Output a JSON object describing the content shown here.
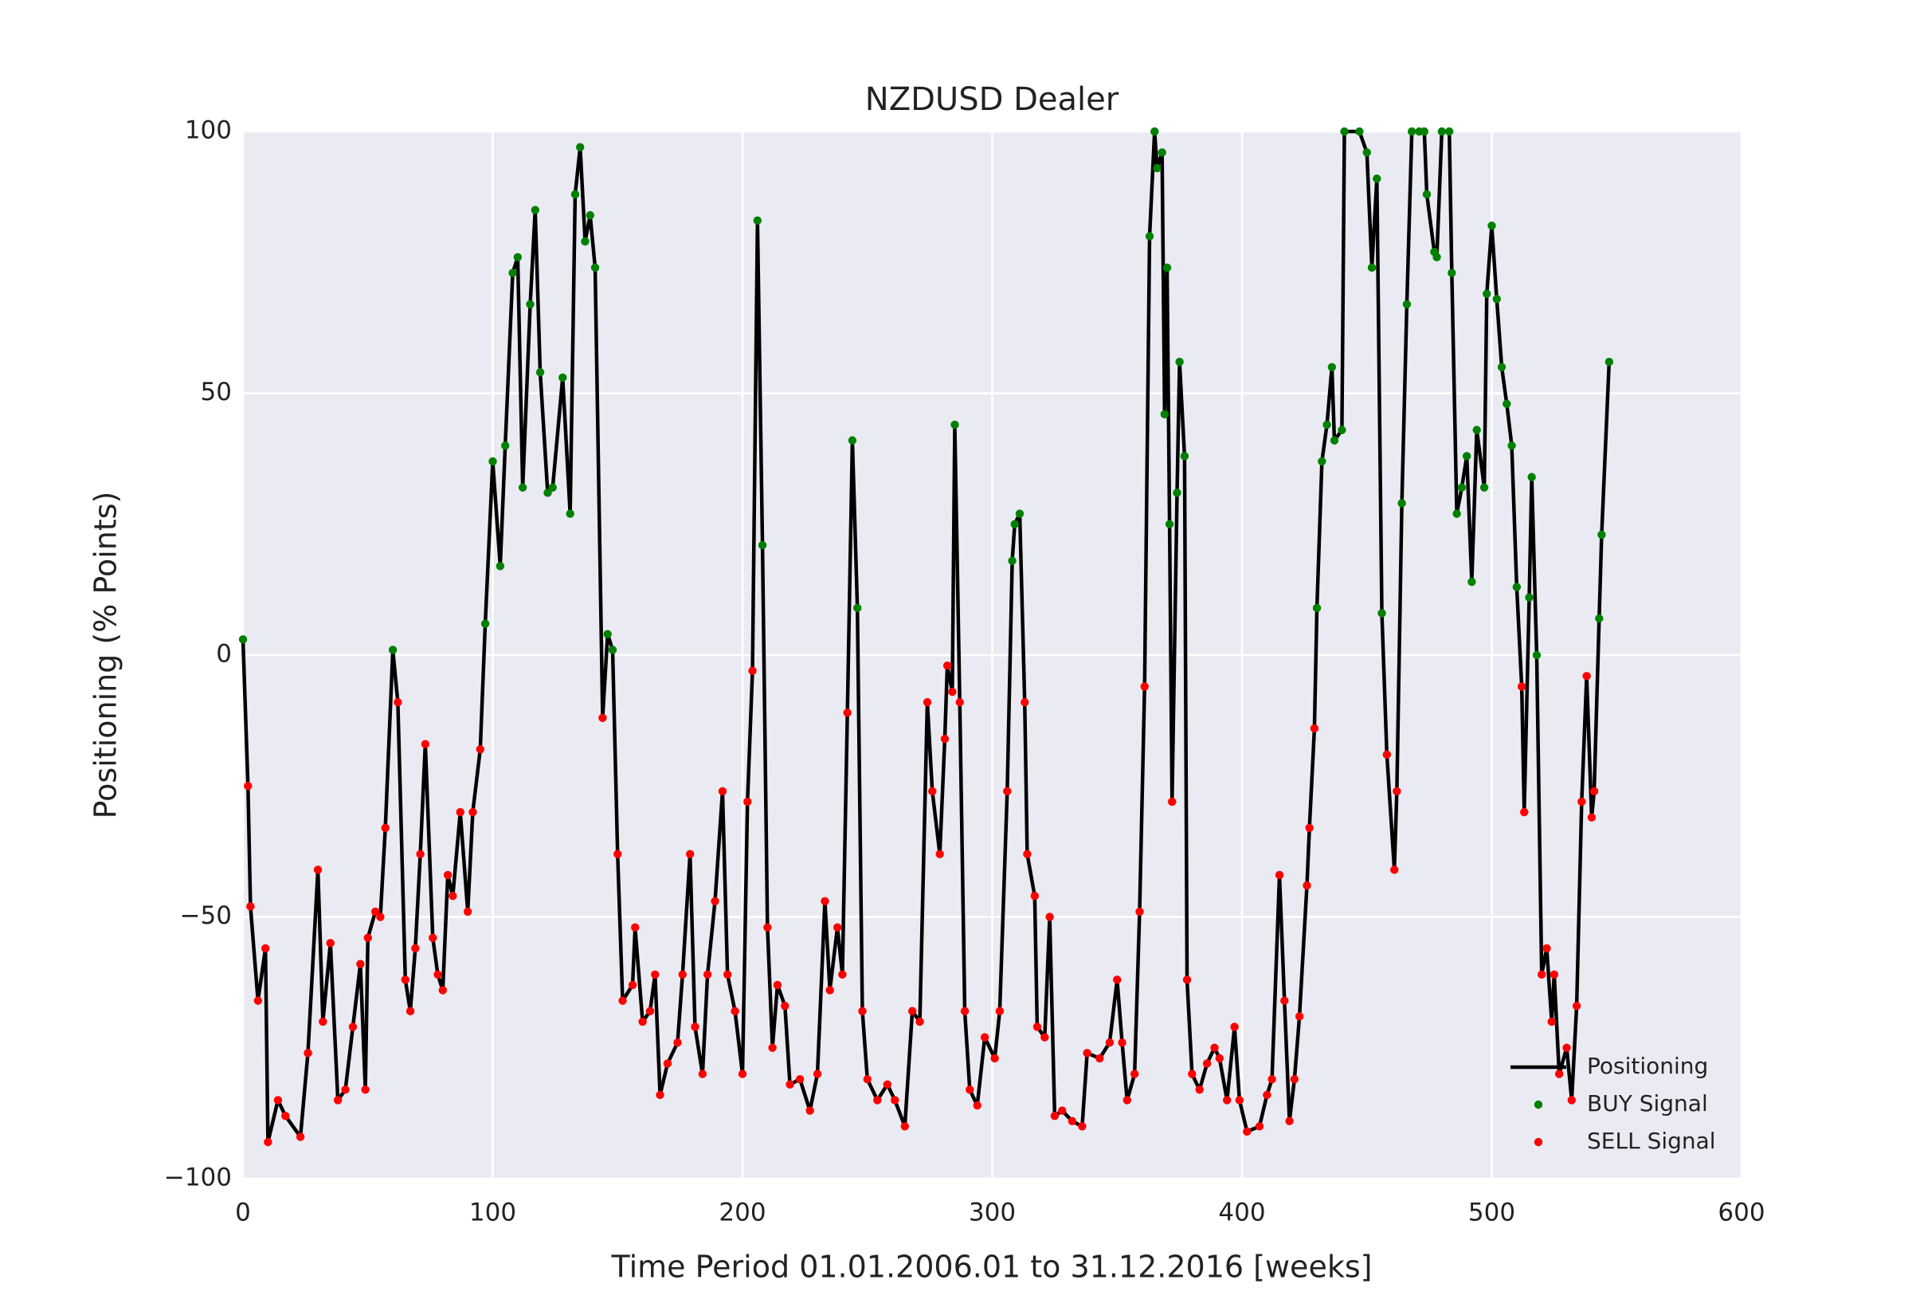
{
  "chart_data": {
    "type": "line",
    "title": "NZDUSD Dealer",
    "xlabel": "Time Period 01.01.2006.01 to 31.12.2016 [weeks]",
    "ylabel": "Positioning (% Points)",
    "xlim": [
      0,
      600
    ],
    "xticks": [
      0,
      100,
      200,
      300,
      400,
      500,
      600
    ],
    "ylim": [
      -100,
      100
    ],
    "yticks": [
      {
        "value": -100,
        "label": "−100"
      },
      {
        "value": -50,
        "label": "−50"
      },
      0,
      50,
      100
    ],
    "grid": true,
    "legend": "lower right",
    "x": [
      0,
      2,
      3,
      6,
      9,
      10,
      14,
      17,
      23,
      26,
      30,
      32,
      35,
      38,
      41,
      44,
      47,
      49,
      50,
      53,
      55,
      57,
      60,
      62,
      65,
      67,
      69,
      71,
      73,
      76,
      78,
      80,
      82,
      84,
      87,
      90,
      92,
      95,
      97,
      100,
      103,
      105,
      108,
      110,
      112,
      115,
      117,
      119,
      122,
      124,
      128,
      131,
      133,
      135,
      137,
      139,
      141,
      144,
      146,
      148,
      150,
      152,
      156,
      157,
      160,
      163,
      165,
      167,
      170,
      174,
      176,
      179,
      181,
      184,
      186,
      189,
      192,
      194,
      197,
      200,
      202,
      204,
      206,
      208,
      210,
      212,
      214,
      217,
      219,
      223,
      227,
      230,
      233,
      235,
      238,
      240,
      242,
      244,
      246,
      248,
      250,
      254,
      258,
      261,
      265,
      268,
      271,
      274,
      276,
      279,
      281,
      282,
      284,
      285,
      287,
      289,
      291,
      294,
      297,
      301,
      303,
      306,
      308,
      309,
      311,
      313,
      314,
      317,
      318,
      321,
      323,
      325,
      328,
      332,
      336,
      338,
      343,
      347,
      350,
      352,
      354,
      357,
      359,
      361,
      363,
      365,
      366,
      368,
      369,
      370,
      371,
      372,
      374,
      375,
      377,
      378,
      380,
      383,
      386,
      389,
      391,
      394,
      397,
      399,
      402,
      407,
      410,
      412,
      415,
      417,
      419,
      421,
      423,
      426,
      427,
      429,
      430,
      432,
      434,
      436,
      437,
      440,
      441,
      447,
      450,
      452,
      454,
      456,
      458,
      461,
      462,
      464,
      466,
      468,
      471,
      473,
      474,
      477,
      478,
      480,
      483,
      484,
      486,
      488,
      490,
      492,
      494,
      497,
      498,
      500,
      502,
      504,
      506,
      508,
      510,
      512,
      513,
      515,
      516,
      518,
      520,
      522,
      524,
      525,
      527,
      530,
      532,
      534,
      536,
      538,
      540,
      541,
      543,
      544,
      547
    ],
    "series": [
      {
        "name": "Positioning",
        "kind": "line",
        "color": "#000000",
        "values": [
          3,
          -25,
          -48,
          -66,
          -56,
          -93,
          -85,
          -88,
          -92,
          -76,
          -41,
          -70,
          -55,
          -85,
          -83,
          -71,
          -59,
          -83,
          -54,
          -49,
          -50,
          -33,
          1,
          -9,
          -62,
          -68,
          -56,
          -38,
          -17,
          -54,
          -61,
          -64,
          -42,
          -46,
          -30,
          -49,
          -30,
          -18,
          6,
          37,
          17,
          40,
          73,
          76,
          32,
          67,
          85,
          54,
          31,
          32,
          53,
          27,
          88,
          97,
          79,
          84,
          74,
          -12,
          4,
          1,
          -38,
          -66,
          -63,
          -52,
          -70,
          -68,
          -61,
          -84,
          -78,
          -74,
          -61,
          -38,
          -71,
          -80,
          -61,
          -47,
          -26,
          -61,
          -68,
          -80,
          -28,
          -3,
          83,
          21,
          -52,
          -75,
          -63,
          -67,
          -82,
          -81,
          -87,
          -80,
          -47,
          -64,
          -52,
          -61,
          -11,
          41,
          9,
          -68,
          -81,
          -85,
          -82,
          -85,
          -90,
          -68,
          -70,
          -9,
          -26,
          -38,
          -16,
          -2,
          -7,
          44,
          -9,
          -68,
          -83,
          -86,
          -73,
          -77,
          -68,
          -26,
          18,
          25,
          27,
          -9,
          -38,
          -46,
          -71,
          -73,
          -50,
          -88,
          -87,
          -89,
          -90,
          -76,
          -77,
          -74,
          -62,
          -74,
          -85,
          -80,
          -49,
          -6,
          80,
          100,
          93,
          96,
          46,
          74,
          25,
          -28,
          31,
          56,
          38,
          -62,
          -80,
          -83,
          -78,
          -75,
          -77,
          -85,
          -71,
          -85,
          -91,
          -90,
          -84,
          -81,
          -42,
          -66,
          -89,
          -81,
          -69,
          -44,
          -33,
          -14,
          9,
          37,
          44,
          55,
          41,
          43,
          100,
          100,
          96,
          74,
          91,
          8,
          -19,
          -41,
          -26,
          29,
          67,
          100,
          100,
          100,
          88,
          77,
          76,
          100,
          100,
          73,
          27,
          32,
          38,
          14,
          43,
          32,
          69,
          82,
          68,
          55,
          48,
          40,
          13,
          -6,
          -30,
          11,
          34,
          0,
          -61,
          -56,
          -70,
          -61,
          -80,
          -75,
          -85,
          -67,
          -28,
          -4,
          -31,
          -26,
          7,
          23,
          56
        ]
      },
      {
        "name": "BUY Signal",
        "kind": "scatter",
        "color": "#008000",
        "values": [
          3,
          null,
          null,
          null,
          null,
          null,
          null,
          null,
          null,
          null,
          null,
          null,
          null,
          null,
          null,
          null,
          null,
          null,
          null,
          null,
          null,
          null,
          1,
          null,
          null,
          null,
          null,
          null,
          null,
          null,
          null,
          null,
          null,
          null,
          null,
          null,
          null,
          null,
          6,
          37,
          17,
          40,
          73,
          76,
          32,
          67,
          85,
          54,
          31,
          32,
          53,
          27,
          88,
          97,
          79,
          84,
          74,
          null,
          4,
          1,
          null,
          null,
          null,
          null,
          null,
          null,
          null,
          null,
          null,
          null,
          null,
          null,
          null,
          null,
          null,
          null,
          null,
          null,
          null,
          null,
          null,
          null,
          83,
          21,
          null,
          null,
          null,
          null,
          null,
          null,
          null,
          null,
          null,
          null,
          null,
          null,
          null,
          41,
          9,
          null,
          null,
          null,
          null,
          null,
          null,
          null,
          null,
          null,
          null,
          null,
          null,
          null,
          null,
          44,
          null,
          null,
          null,
          null,
          null,
          null,
          null,
          null,
          18,
          25,
          27,
          null,
          null,
          null,
          null,
          null,
          null,
          null,
          null,
          null,
          null,
          null,
          null,
          null,
          null,
          null,
          null,
          null,
          null,
          null,
          80,
          100,
          93,
          96,
          46,
          74,
          25,
          null,
          31,
          56,
          38,
          null,
          null,
          null,
          null,
          null,
          null,
          null,
          null,
          null,
          null,
          null,
          null,
          null,
          null,
          null,
          null,
          null,
          null,
          null,
          null,
          null,
          9,
          37,
          44,
          55,
          41,
          43,
          100,
          100,
          96,
          74,
          91,
          8,
          null,
          null,
          null,
          29,
          67,
          100,
          100,
          100,
          88,
          77,
          76,
          100,
          100,
          73,
          27,
          32,
          38,
          14,
          43,
          32,
          69,
          82,
          68,
          55,
          48,
          40,
          13,
          null,
          null,
          11,
          34,
          0,
          null,
          null,
          null,
          null,
          null,
          null,
          null,
          null,
          null,
          null,
          null,
          null,
          7,
          23,
          56
        ]
      },
      {
        "name": "SELL Signal",
        "kind": "scatter",
        "color": "#ff0000",
        "values": [
          null,
          -25,
          -48,
          -66,
          -56,
          -93,
          -85,
          -88,
          -92,
          -76,
          -41,
          -70,
          -55,
          -85,
          -83,
          -71,
          -59,
          -83,
          -54,
          -49,
          -50,
          -33,
          null,
          -9,
          -62,
          -68,
          -56,
          -38,
          -17,
          -54,
          -61,
          -64,
          -42,
          -46,
          -30,
          -49,
          -30,
          -18,
          null,
          null,
          null,
          null,
          null,
          null,
          null,
          null,
          null,
          null,
          null,
          null,
          null,
          null,
          null,
          null,
          null,
          null,
          null,
          -12,
          null,
          null,
          -38,
          -66,
          -63,
          -52,
          -70,
          -68,
          -61,
          -84,
          -78,
          -74,
          -61,
          -38,
          -71,
          -80,
          -61,
          -47,
          -26,
          -61,
          -68,
          -80,
          -28,
          -3,
          null,
          null,
          -52,
          -75,
          -63,
          -67,
          -82,
          -81,
          -87,
          -80,
          -47,
          -64,
          -52,
          -61,
          -11,
          null,
          null,
          -68,
          -81,
          -85,
          -82,
          -85,
          -90,
          -68,
          -70,
          -9,
          -26,
          -38,
          -16,
          -2,
          -7,
          null,
          -9,
          -68,
          -83,
          -86,
          -73,
          -77,
          -68,
          -26,
          null,
          null,
          null,
          -9,
          -38,
          -46,
          -71,
          -73,
          -50,
          -88,
          -87,
          -89,
          -90,
          -76,
          -77,
          -74,
          -62,
          -74,
          -85,
          -80,
          -49,
          -6,
          null,
          null,
          null,
          null,
          null,
          null,
          null,
          -28,
          null,
          null,
          null,
          -62,
          -80,
          -83,
          -78,
          -75,
          -77,
          -85,
          -71,
          -85,
          -91,
          -90,
          -84,
          -81,
          -42,
          -66,
          -89,
          -81,
          -69,
          -44,
          -33,
          -14,
          null,
          null,
          null,
          null,
          null,
          null,
          null,
          null,
          null,
          null,
          null,
          null,
          -19,
          -41,
          -26,
          null,
          null,
          null,
          null,
          null,
          null,
          null,
          null,
          null,
          null,
          null,
          null,
          null,
          null,
          null,
          null,
          null,
          null,
          null,
          null,
          null,
          null,
          null,
          null,
          -6,
          -30,
          null,
          null,
          null,
          -61,
          -56,
          -70,
          -61,
          -80,
          -75,
          -85,
          -67,
          -28,
          -4,
          -31,
          -26,
          null,
          null,
          null
        ]
      }
    ]
  }
}
